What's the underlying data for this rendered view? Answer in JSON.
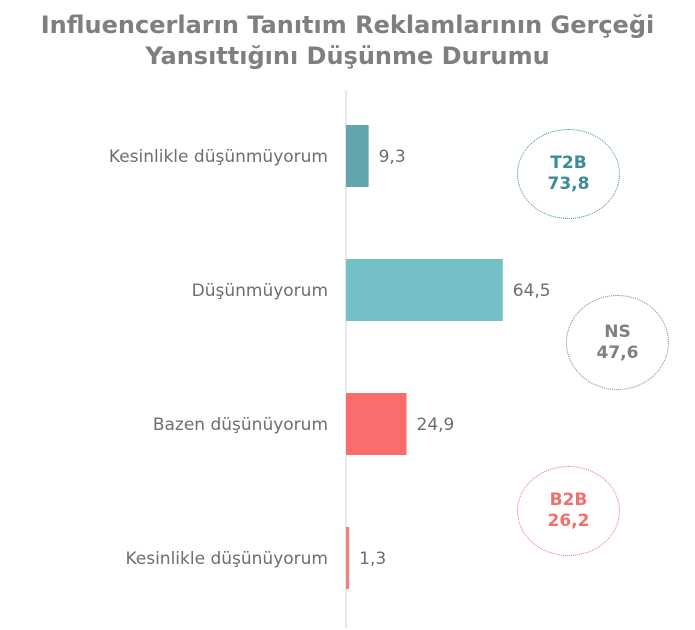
{
  "chart_data": {
    "type": "bar",
    "orientation": "horizontal",
    "title_lines": [
      "Influencerların Tanıtım Reklamlarının Gerçeği",
      "Yansıttığını Düşünme Durumu"
    ],
    "categories": [
      "Kesinlikle düşünmüyorum",
      "Düşünmüyorum",
      "Bazen düşünüyorum",
      "Kesinlikle düşünüyorum"
    ],
    "values": [
      9.3,
      64.5,
      24.9,
      1.3
    ],
    "value_labels": [
      "9,3",
      "64,5",
      "24,9",
      "1,3"
    ],
    "bar_colors": [
      "#62a4ab",
      "#73c0c6",
      "#fb6c6c",
      "#f28080"
    ],
    "xlim": [
      0,
      100
    ],
    "grid": false,
    "summaries": [
      {
        "label": "T2B",
        "value": "73,8",
        "color": "#3b8e94"
      },
      {
        "label": "NS",
        "value": "47,6",
        "color": "#808080"
      },
      {
        "label": "B2B",
        "value": "26,2",
        "color": "#f07070"
      }
    ]
  }
}
